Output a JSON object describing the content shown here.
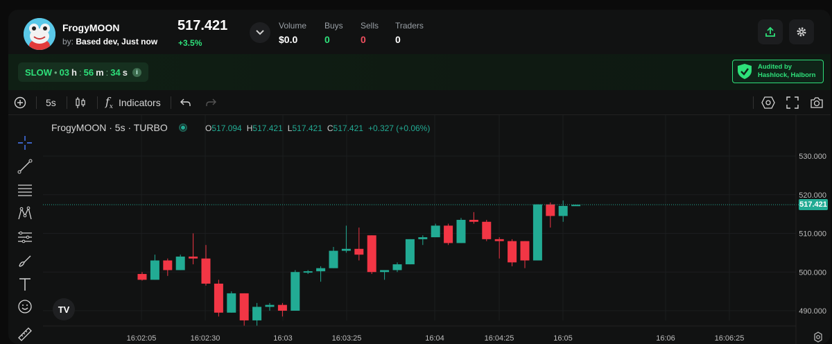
{
  "token": {
    "name": "FrogyMOON",
    "by_label": "by:",
    "creator": "Based dev, Just now",
    "price": "517.421",
    "change": "+3.5%"
  },
  "stats": [
    {
      "label": "Volume",
      "value": "$0.0",
      "color": "#ffffff"
    },
    {
      "label": "Buys",
      "value": "0",
      "color": "#2ee07a"
    },
    {
      "label": "Sells",
      "value": "0",
      "color": "#f0505f"
    },
    {
      "label": "Traders",
      "value": "0",
      "color": "#ffffff"
    }
  ],
  "status": {
    "mode": "SLOW",
    "hours": "03",
    "hours_unit": "h",
    "minutes": "56",
    "minutes_unit": "m",
    "seconds": "34",
    "seconds_unit": "s"
  },
  "audit": {
    "line1": "Audited by",
    "line2": "Hashlock, Halborn"
  },
  "toolbar": {
    "interval": "5s",
    "indicators": "Indicators"
  },
  "legend": {
    "symbol": "FrogyMOON · 5s · TURBO",
    "o_label": "O",
    "o": "517.094",
    "h_label": "H",
    "h": "517.421",
    "l_label": "L",
    "l": "517.421",
    "c_label": "C",
    "c": "517.421",
    "change": "+0.327 (+0.06%)"
  },
  "colors": {
    "up": "#22ab94",
    "down": "#f23645",
    "accent": "#2ee07a"
  },
  "chart_data": {
    "type": "candlestick",
    "title": "FrogyMOON · 5s · TURBO",
    "ylim": [
      485,
      535
    ],
    "y_ticks": [
      "530.000",
      "520.000",
      "510.000",
      "500.000",
      "490.000"
    ],
    "y_tick_values": [
      530,
      520,
      510,
      500,
      490
    ],
    "x_ticks": [
      "16:02:05",
      "16:02:30",
      "16:03",
      "16:03:25",
      "16:04",
      "16:04:25",
      "16:05",
      "16:06",
      "16:06:25"
    ],
    "last_price": "517.421",
    "candles": [
      {
        "o": 499.5,
        "h": 500.0,
        "l": 497.8,
        "c": 498.0
      },
      {
        "o": 498.0,
        "h": 504.5,
        "l": 498.0,
        "c": 503.0
      },
      {
        "o": 503.0,
        "h": 503.5,
        "l": 499.0,
        "c": 500.5
      },
      {
        "o": 500.5,
        "h": 504.5,
        "l": 500.5,
        "c": 504.0
      },
      {
        "o": 504.0,
        "h": 510.0,
        "l": 502.0,
        "c": 503.5
      },
      {
        "o": 503.5,
        "h": 507.0,
        "l": 496.5,
        "c": 497.0
      },
      {
        "o": 497.0,
        "h": 498.0,
        "l": 488.5,
        "c": 489.5
      },
      {
        "o": 489.5,
        "h": 495.0,
        "l": 489.5,
        "c": 494.5
      },
      {
        "o": 494.5,
        "h": 494.5,
        "l": 486.0,
        "c": 487.5
      },
      {
        "o": 487.5,
        "h": 492.0,
        "l": 486.0,
        "c": 491.0
      },
      {
        "o": 491.0,
        "h": 492.0,
        "l": 490.0,
        "c": 491.5
      },
      {
        "o": 491.5,
        "h": 492.0,
        "l": 488.5,
        "c": 490.0
      },
      {
        "o": 490.0,
        "h": 500.5,
        "l": 490.0,
        "c": 500.0
      },
      {
        "o": 500.0,
        "h": 500.5,
        "l": 499.5,
        "c": 500.2
      },
      {
        "o": 500.2,
        "h": 501.5,
        "l": 497.5,
        "c": 501.0
      },
      {
        "o": 501.0,
        "h": 506.5,
        "l": 501.0,
        "c": 505.5
      },
      {
        "o": 505.5,
        "h": 512.0,
        "l": 505.0,
        "c": 506.0
      },
      {
        "o": 506.0,
        "h": 511.5,
        "l": 503.0,
        "c": 504.5
      },
      {
        "o": 509.5,
        "h": 509.5,
        "l": 499.5,
        "c": 500.0
      },
      {
        "o": 500.0,
        "h": 500.5,
        "l": 498.0,
        "c": 500.5
      },
      {
        "o": 500.5,
        "h": 502.5,
        "l": 500.0,
        "c": 502.0
      },
      {
        "o": 502.0,
        "h": 508.5,
        "l": 502.0,
        "c": 508.5
      },
      {
        "o": 508.5,
        "h": 509.5,
        "l": 507.0,
        "c": 509.0
      },
      {
        "o": 509.0,
        "h": 512.5,
        "l": 509.0,
        "c": 512.0
      },
      {
        "o": 512.0,
        "h": 512.5,
        "l": 507.0,
        "c": 507.5
      },
      {
        "o": 507.5,
        "h": 514.0,
        "l": 507.5,
        "c": 513.5
      },
      {
        "o": 513.5,
        "h": 515.5,
        "l": 512.5,
        "c": 513.0
      },
      {
        "o": 513.0,
        "h": 513.5,
        "l": 508.0,
        "c": 508.5
      },
      {
        "o": 508.5,
        "h": 509.0,
        "l": 503.5,
        "c": 508.0
      },
      {
        "o": 508.0,
        "h": 508.5,
        "l": 501.5,
        "c": 502.5
      },
      {
        "o": 508.0,
        "h": 508.0,
        "l": 501.0,
        "c": 503.0
      },
      {
        "o": 503.0,
        "h": 517.5,
        "l": 503.0,
        "c": 517.5
      },
      {
        "o": 517.5,
        "h": 518.0,
        "l": 511.5,
        "c": 514.5
      },
      {
        "o": 514.5,
        "h": 518.5,
        "l": 513.0,
        "c": 517.1
      },
      {
        "o": 517.1,
        "h": 517.4,
        "l": 517.1,
        "c": 517.4
      }
    ]
  }
}
